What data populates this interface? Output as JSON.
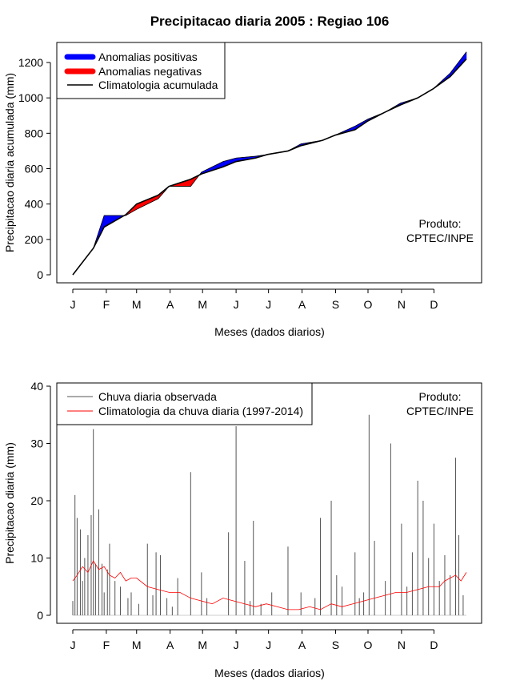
{
  "chart_data": [
    {
      "type": "area",
      "title": "Precipitacao diaria 2005 : Regiao 106",
      "xlabel": "Meses (dados diarios)",
      "ylabel": "Precipitacao diaria acumulada (mm)",
      "ylim": [
        0,
        1300
      ],
      "yticks": [
        0,
        200,
        400,
        600,
        800,
        1000,
        1200
      ],
      "month_labels": [
        "J",
        "F",
        "M",
        "A",
        "M",
        "J",
        "J",
        "A",
        "S",
        "O",
        "N",
        "D"
      ],
      "legend": {
        "position": "top-left",
        "positive": "Anomalias positivas",
        "negative": "Anomalias negativas",
        "climatology": "Climatologia acumulada"
      },
      "annotation": [
        "Produto:",
        "CPTEC/INPE"
      ],
      "colors": {
        "positive": "#0000ff",
        "negative": "#ff0000",
        "line": "#000000"
      },
      "x_days": [
        1,
        20,
        30,
        50,
        60,
        80,
        90,
        110,
        120,
        140,
        152,
        170,
        181,
        200,
        212,
        232,
        244,
        262,
        274,
        290,
        304,
        320,
        334,
        350,
        365
      ],
      "observed_cumulative": [
        0,
        150,
        335,
        335,
        370,
        430,
        500,
        500,
        580,
        640,
        660,
        670,
        680,
        700,
        740,
        760,
        790,
        840,
        880,
        920,
        970,
        1000,
        1050,
        1140,
        1260
      ],
      "climatology_cumulative": [
        0,
        150,
        270,
        340,
        400,
        450,
        500,
        540,
        570,
        610,
        640,
        660,
        680,
        700,
        730,
        760,
        790,
        820,
        870,
        920,
        960,
        1000,
        1050,
        1120,
        1220
      ]
    },
    {
      "type": "bar",
      "xlabel": "Meses (dados diarios)",
      "ylabel": "Precipitacao diaria (mm)",
      "ylim": [
        0,
        40
      ],
      "yticks": [
        0,
        10,
        20,
        30,
        40
      ],
      "month_labels": [
        "J",
        "F",
        "M",
        "A",
        "M",
        "J",
        "J",
        "A",
        "S",
        "O",
        "N",
        "D"
      ],
      "legend": {
        "position": "top-left",
        "observed": "Chuva diaria observada",
        "climatology": "Climatologia da chuva diaria (1997-2014)"
      },
      "annotation": [
        "Produto:",
        "CPTEC/INPE"
      ],
      "colors": {
        "observed": "#555555",
        "climatology": "#ff0000"
      },
      "observed_days": [
        1,
        3,
        5,
        8,
        10,
        12,
        15,
        18,
        20,
        22,
        25,
        28,
        30,
        33,
        35,
        40,
        45,
        52,
        55,
        62,
        70,
        75,
        78,
        82,
        88,
        93,
        98,
        110,
        120,
        125,
        145,
        152,
        160,
        165,
        168,
        175,
        185,
        200,
        212,
        225,
        230,
        240,
        245,
        250,
        262,
        266,
        270,
        275,
        280,
        290,
        295,
        305,
        310,
        315,
        320,
        325,
        330,
        335,
        340,
        345,
        350,
        355,
        358,
        362
      ],
      "observed_values": [
        2.5,
        21,
        17,
        15,
        6,
        10,
        14,
        17.5,
        32.5,
        9,
        18.5,
        9,
        4,
        8,
        12.5,
        6,
        5,
        3,
        4,
        2,
        12.5,
        3.5,
        11,
        10.5,
        3,
        1.5,
        6.5,
        25,
        7.5,
        3,
        14.5,
        33,
        9.5,
        2.5,
        16.5,
        2,
        4,
        12,
        4,
        3,
        17,
        20,
        7,
        5,
        11,
        3,
        4,
        35,
        13,
        6,
        30,
        16,
        5,
        11,
        23.5,
        20,
        10,
        16,
        6,
        10.5,
        7,
        27.5,
        14,
        3.5
      ],
      "climatology_days": [
        1,
        5,
        10,
        15,
        20,
        25,
        30,
        35,
        40,
        45,
        50,
        55,
        60,
        70,
        80,
        90,
        100,
        110,
        120,
        130,
        140,
        150,
        160,
        170,
        180,
        190,
        200,
        210,
        220,
        230,
        240,
        250,
        260,
        270,
        280,
        290,
        300,
        310,
        320,
        330,
        340,
        345,
        350,
        355,
        360,
        365
      ],
      "climatology_values": [
        6,
        7,
        8.5,
        7.5,
        9.5,
        8,
        8.5,
        7,
        6.5,
        7.5,
        6,
        6.5,
        6.5,
        5,
        4.5,
        4,
        4,
        3,
        2.5,
        2,
        3,
        2.5,
        2,
        1.5,
        2,
        1.5,
        1,
        1,
        1.5,
        1,
        2,
        1.5,
        2,
        2.5,
        3,
        3.5,
        4,
        4,
        4.5,
        5,
        5,
        6,
        6.5,
        7,
        6,
        7.5
      ]
    }
  ]
}
